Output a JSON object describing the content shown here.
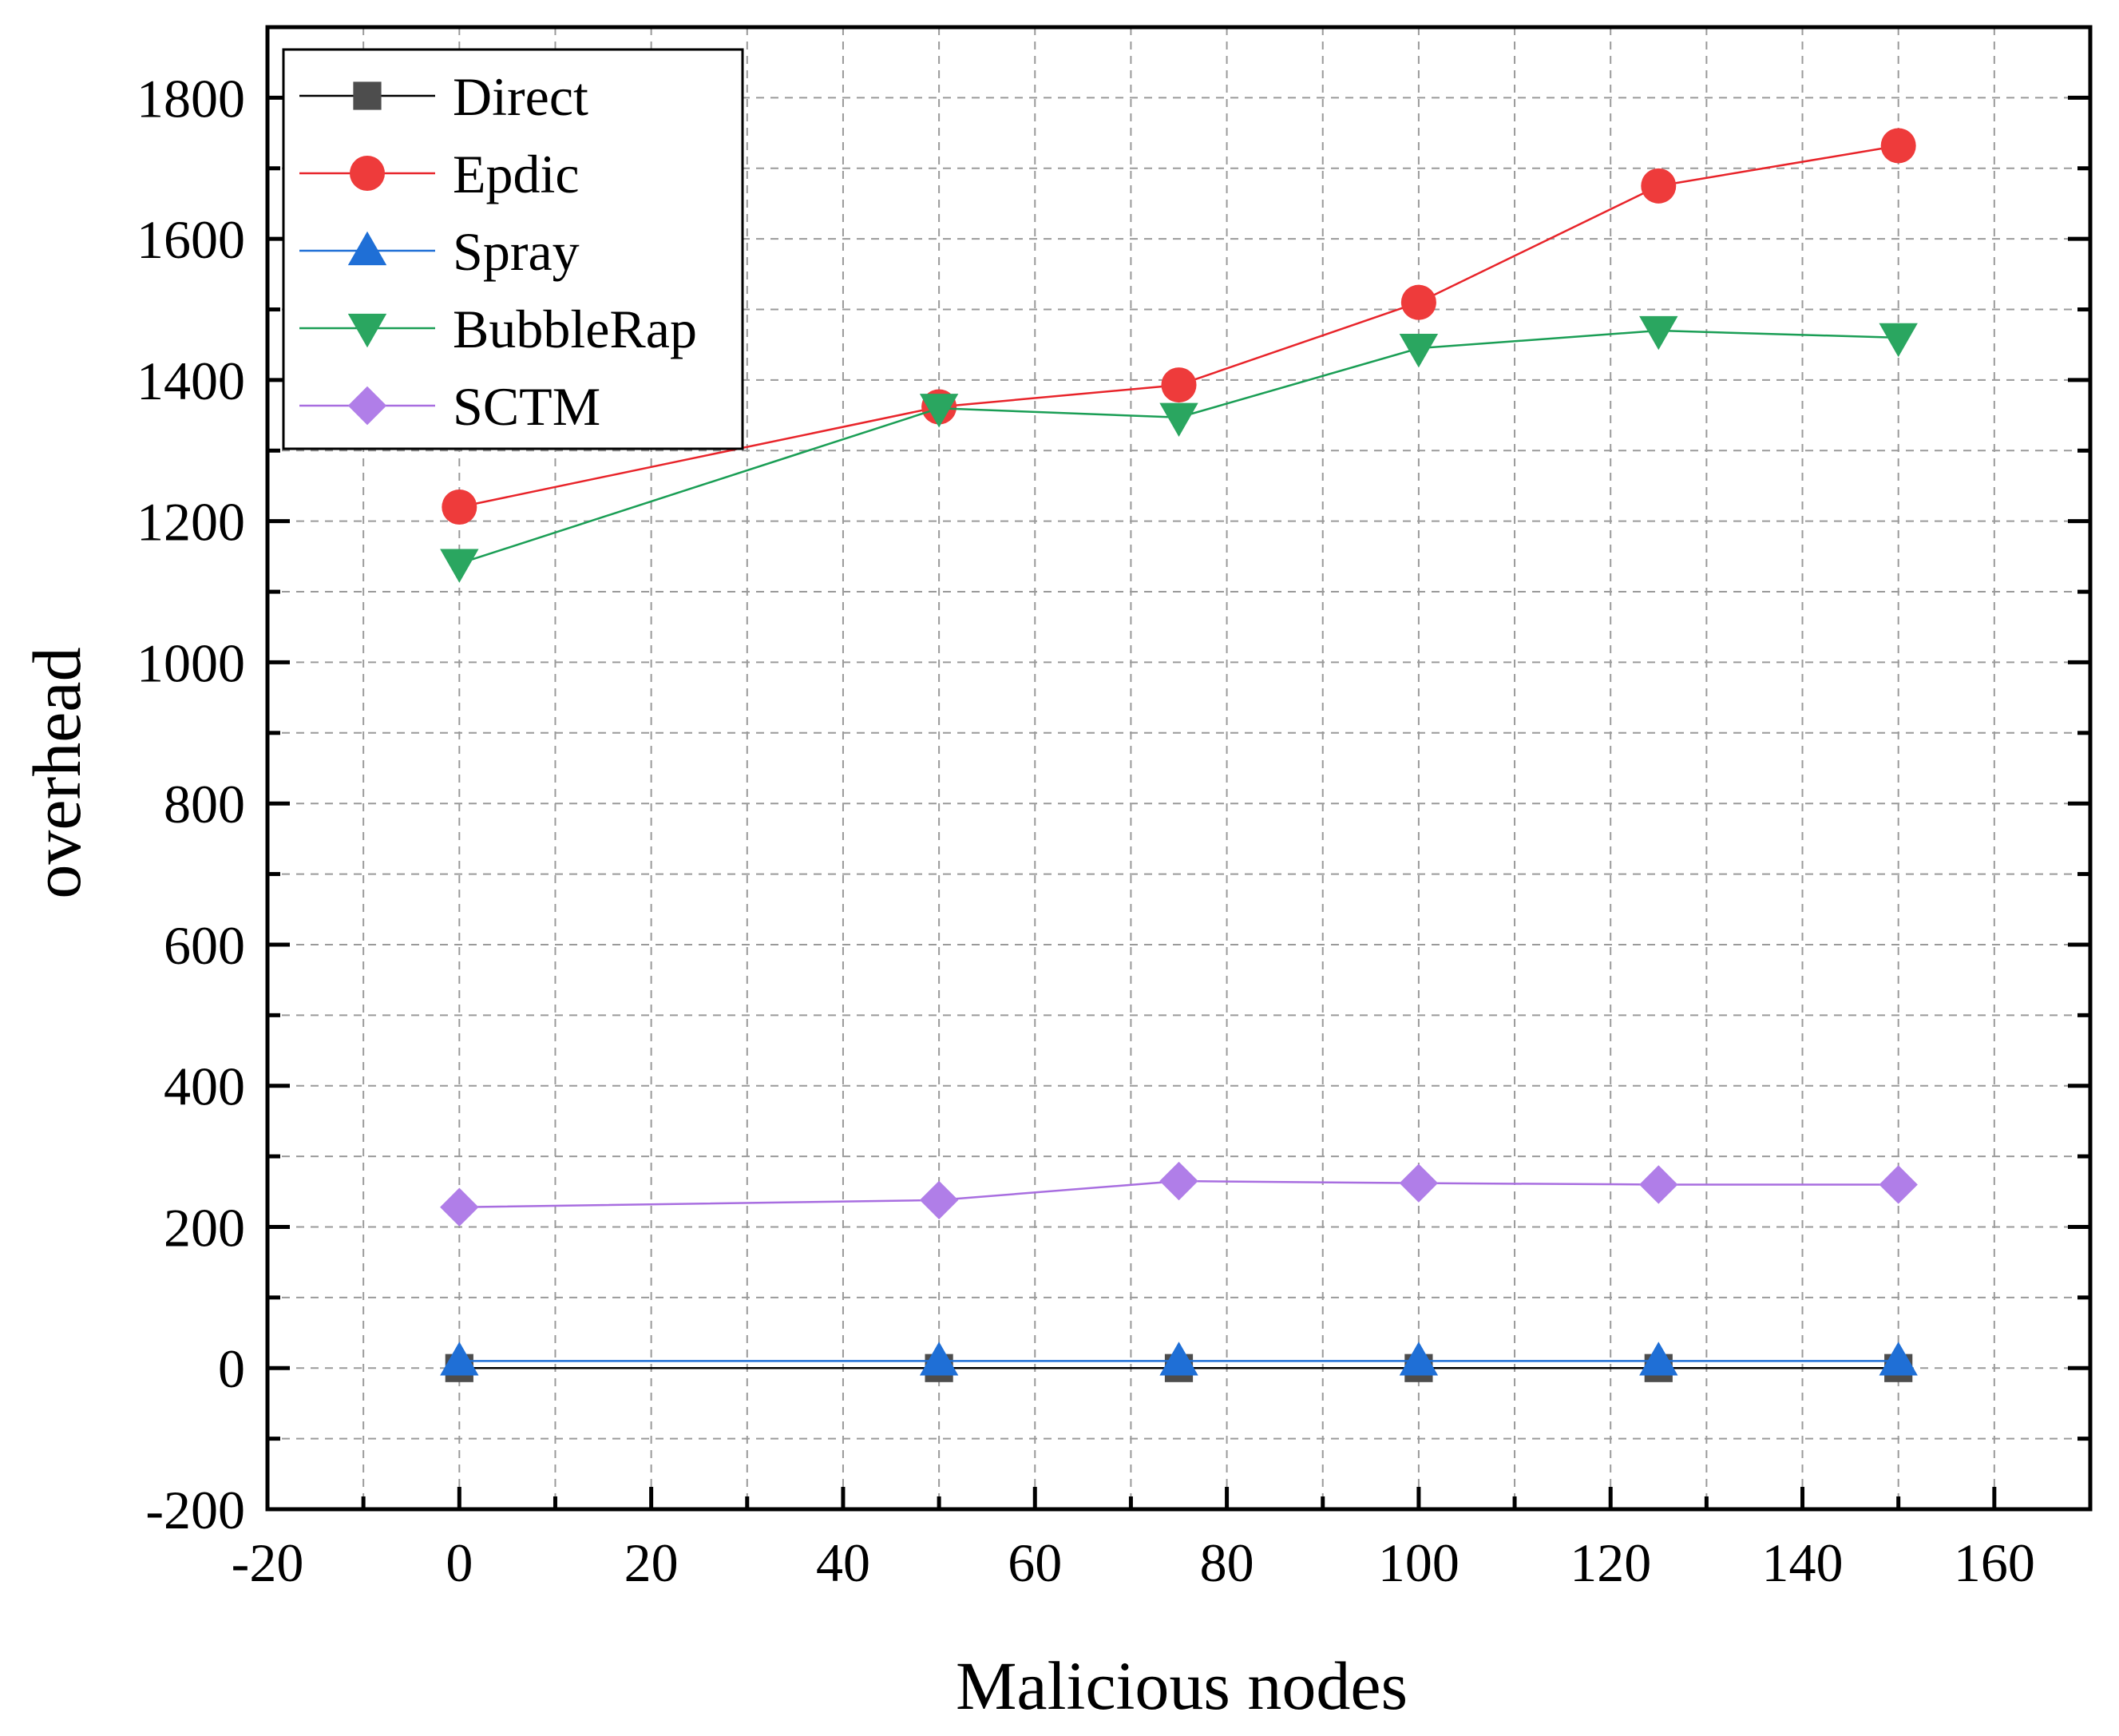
{
  "chart_data": {
    "type": "line",
    "title": "",
    "xlabel": "Malicious nodes",
    "ylabel": "overhead",
    "xlim": [
      -20,
      170
    ],
    "ylim": [
      -200,
      1900
    ],
    "xticks": [
      -20,
      0,
      20,
      40,
      60,
      80,
      100,
      120,
      140,
      160
    ],
    "yticks": [
      -200,
      0,
      200,
      400,
      600,
      800,
      1000,
      1200,
      1400,
      1600,
      1800
    ],
    "grid": true,
    "legend_position": "top-left",
    "x": [
      0,
      50,
      75,
      100,
      125,
      150
    ],
    "series": [
      {
        "name": "Direct",
        "marker": "square",
        "color": "#000000",
        "marker_color": "#4d4d4d",
        "values": [
          0,
          0,
          0,
          0,
          0,
          0
        ]
      },
      {
        "name": "Epdic",
        "marker": "circle",
        "color": "#e8242a",
        "marker_color": "#ee3b3b",
        "values": [
          1220,
          1362,
          1393,
          1510,
          1675,
          1732
        ]
      },
      {
        "name": "Spray",
        "marker": "triangle-up",
        "color": "#1f6fd6",
        "marker_color": "#1f6fd6",
        "values": [
          10,
          10,
          10,
          10,
          10,
          10
        ]
      },
      {
        "name": "BubbleRap",
        "marker": "triangle-down",
        "color": "#1a9e55",
        "marker_color": "#2aa660",
        "values": [
          1140,
          1360,
          1347,
          1445,
          1470,
          1460
        ]
      },
      {
        "name": "SCTM",
        "marker": "diamond",
        "color": "#a86ee0",
        "marker_color": "#b07ee8",
        "values": [
          228,
          238,
          265,
          262,
          260,
          260
        ]
      }
    ]
  }
}
